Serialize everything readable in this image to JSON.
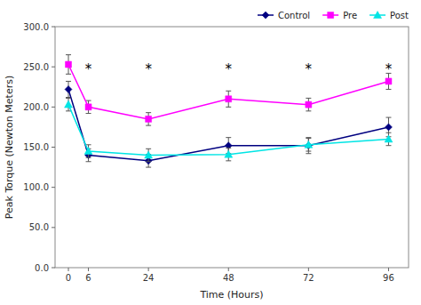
{
  "chart_data": {
    "type": "line",
    "x_label": "Time (Hours)",
    "y_label": "Peak Torque (Newton Meters)",
    "x": [
      0,
      6,
      24,
      48,
      72,
      96
    ],
    "series": [
      {
        "name": "Control",
        "color": "#000080",
        "marker": "diamond",
        "values": [
          222,
          140,
          133,
          152,
          152,
          175
        ],
        "errors": [
          10,
          8,
          8,
          10,
          10,
          12
        ]
      },
      {
        "name": "Pre",
        "color": "#ff00ff",
        "marker": "square",
        "values": [
          253,
          200,
          185,
          210,
          203,
          232
        ],
        "errors": [
          12,
          8,
          8,
          10,
          8,
          10
        ]
      },
      {
        "name": "Post",
        "color": "#00e5e5",
        "marker": "triangle",
        "values": [
          203,
          145,
          140,
          141,
          153,
          160
        ],
        "errors": [
          8,
          8,
          8,
          8,
          8,
          8
        ]
      }
    ],
    "annotations": [
      {
        "text": "*",
        "x": 6,
        "y": 248
      },
      {
        "text": "*",
        "x": 24,
        "y": 248
      },
      {
        "text": "*",
        "x": 48,
        "y": 248
      },
      {
        "text": "*",
        "x": 72,
        "y": 248
      },
      {
        "text": "*",
        "x": 96,
        "y": 248
      }
    ],
    "xlim": [
      -4,
      102
    ],
    "xticks": [
      0,
      6,
      24,
      48,
      72,
      96
    ],
    "ylim": [
      0,
      300
    ],
    "yticks": [
      {
        "value": 0,
        "label": "0.0"
      },
      {
        "value": 50,
        "label": "50.0"
      },
      {
        "value": 100,
        "label": "100.0"
      },
      {
        "value": 150,
        "label": "150.0"
      },
      {
        "value": 200,
        "label": "200.0"
      },
      {
        "value": 250,
        "label": "250.0"
      },
      {
        "value": 300,
        "label": "300.0"
      }
    ],
    "grid": false,
    "legend": "upper right"
  }
}
